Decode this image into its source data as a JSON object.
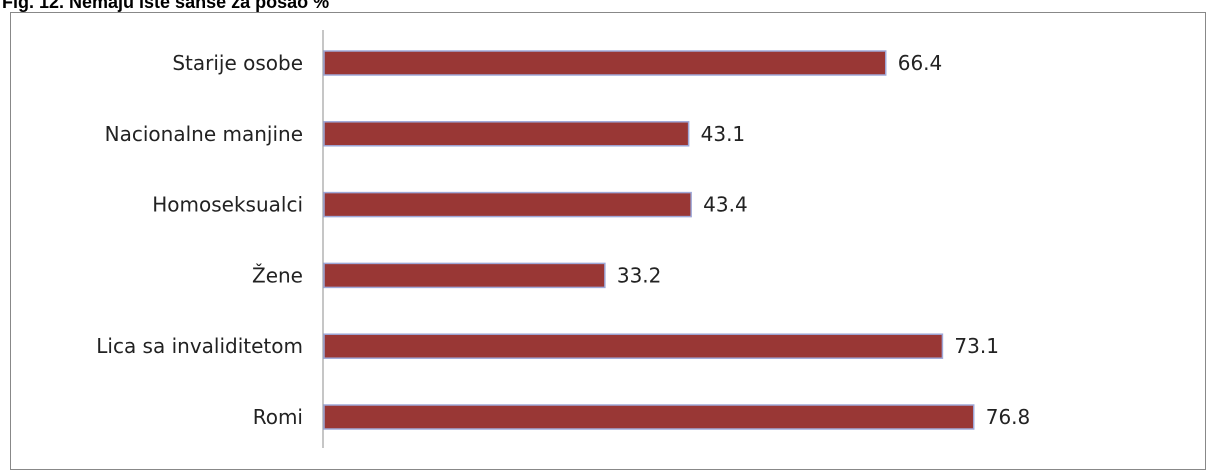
{
  "chart_data": {
    "type": "bar",
    "orientation": "horizontal",
    "title": "Fig.  12. Nemaju iste šanse za posao %",
    "categories": [
      "Starije osobe",
      "Nacionalne manjine",
      "Homoseksualci",
      "Žene",
      "Lica sa invaliditetom",
      "Romi"
    ],
    "values": [
      66.4,
      43.1,
      43.4,
      33.2,
      73.1,
      76.8
    ],
    "value_labels": [
      "66.4",
      "43.1",
      "43.4",
      "33.2",
      "73.1",
      "76.8"
    ],
    "xlabel": "",
    "ylabel": "",
    "xlim": [
      0,
      100
    ],
    "grid": false,
    "legend": "none",
    "colors": {
      "bar": "#993735",
      "bar_edge": "#9fa8d8"
    }
  }
}
